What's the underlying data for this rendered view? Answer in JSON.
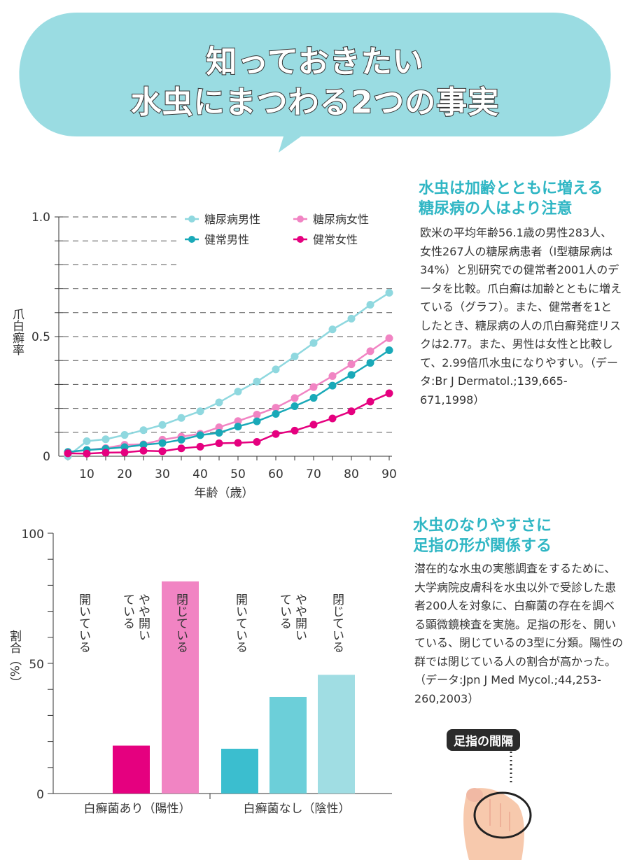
{
  "header": {
    "line1": "知っておきたい",
    "line2": "水虫にまつわる2つの事実",
    "bubble_color": "#9adce2"
  },
  "section1": {
    "title1": "水虫は加齢とともに増える",
    "title2": "糖尿病の人はより注意",
    "body": "欧米の平均年齢56.1歳の男性283人、女性267人の糖尿病患者（I型糖尿病は34%）と別研究での健常者2001人のデータを比較。爪白癬は加齢とともに増えている（グラフ）。また、健常者を1としたとき、糖尿病の人の爪白癬発症リスクは2.77。また、男性は女性と比較して、2.99倍爪水虫になりやすい。（データ:Br J Dermatol.;139,665-671,1998）"
  },
  "section2": {
    "title1": "水虫のなりやすさに",
    "title2": "足指の形が関係する",
    "body": "潜在的な水虫の実態調査をするために、大学病院皮膚科を水虫以外で受診した患者200人を対象に、白癬菌の存在を調べる顕微鏡検査を実施。足指の形を、開いている、閉じているの3型に分類。陽性の群では閉じている人の割合が高かった。（データ:Jpn J Med Mycol.;44,253-260,2003）",
    "illustration_label": "足指の間隔"
  },
  "chart_data": [
    {
      "type": "line",
      "xlabel": "年齢（歳）",
      "ylabel": "爪白癬率",
      "xlim": [
        5,
        90
      ],
      "ylim": [
        0,
        1.0
      ],
      "xticks": [
        10,
        20,
        30,
        40,
        50,
        60,
        70,
        80,
        90
      ],
      "yticks": [
        "0",
        "0.5",
        "1.0"
      ],
      "grid": "dashed horizontal every 0.1",
      "legend": "top-right",
      "x": [
        5,
        10,
        15,
        20,
        25,
        30,
        35,
        40,
        45,
        50,
        55,
        60,
        65,
        70,
        75,
        80,
        85,
        90
      ],
      "series": [
        {
          "name": "糖尿病男性",
          "color": "#8fd8df",
          "values": [
            0.0,
            0.063,
            0.071,
            0.089,
            0.109,
            0.131,
            0.16,
            0.188,
            0.225,
            0.27,
            0.312,
            0.363,
            0.417,
            0.473,
            0.53,
            0.575,
            0.633,
            0.683
          ]
        },
        {
          "name": "糖尿病女性",
          "color": "#f184c3",
          "values": [
            0.017,
            0.026,
            0.034,
            0.048,
            0.05,
            0.069,
            0.082,
            0.094,
            0.121,
            0.147,
            0.174,
            0.203,
            0.243,
            0.289,
            0.335,
            0.384,
            0.439,
            0.493
          ]
        },
        {
          "name": "健常男性",
          "color": "#19a9b8",
          "values": [
            0.018,
            0.026,
            0.031,
            0.038,
            0.048,
            0.055,
            0.069,
            0.088,
            0.098,
            0.124,
            0.146,
            0.177,
            0.209,
            0.244,
            0.295,
            0.34,
            0.39,
            0.443
          ]
        },
        {
          "name": "健常女性",
          "color": "#e5007f",
          "values": [
            0.012,
            0.011,
            0.015,
            0.016,
            0.023,
            0.021,
            0.033,
            0.04,
            0.054,
            0.056,
            0.06,
            0.093,
            0.107,
            0.132,
            0.158,
            0.188,
            0.228,
            0.263
          ]
        }
      ]
    },
    {
      "type": "bar",
      "ylabel": "割合（%）",
      "ylim": [
        0,
        100
      ],
      "yticks": [
        "0",
        "50",
        "100"
      ],
      "groups": [
        {
          "name": "白癬菌あり（陽性）",
          "bars": [
            {
              "label": "開いている",
              "value": 0,
              "color": "#e5007f"
            },
            {
              "label": "やや開いている",
              "value": 18.4,
              "color": "#e5007f"
            },
            {
              "label": "閉じている",
              "value": 81.5,
              "color": "#f184c3"
            }
          ]
        },
        {
          "name": "白癬菌なし（陰性）",
          "bars": [
            {
              "label": "開いている",
              "value": 17.2,
              "color": "#3bbecf"
            },
            {
              "label": "やや開いている",
              "value": 37.1,
              "color": "#6ccfd9"
            },
            {
              "label": "閉じている",
              "value": 45.6,
              "color": "#a0dde3"
            }
          ]
        }
      ]
    }
  ]
}
